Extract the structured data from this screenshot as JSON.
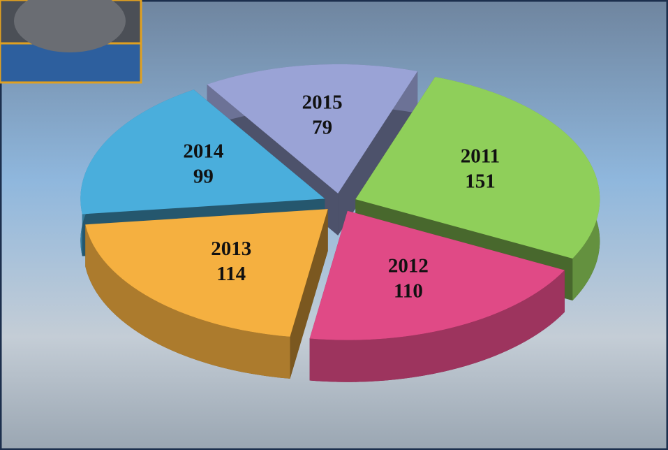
{
  "chart_data": {
    "type": "pie",
    "categories": [
      "2011",
      "2012",
      "2013",
      "2014",
      "2015"
    ],
    "values": [
      151,
      110,
      114,
      99,
      79
    ],
    "colors": [
      "#8fcf5a",
      "#e04a86",
      "#f5b040",
      "#4aaedc",
      "#9aa3d6"
    ]
  }
}
